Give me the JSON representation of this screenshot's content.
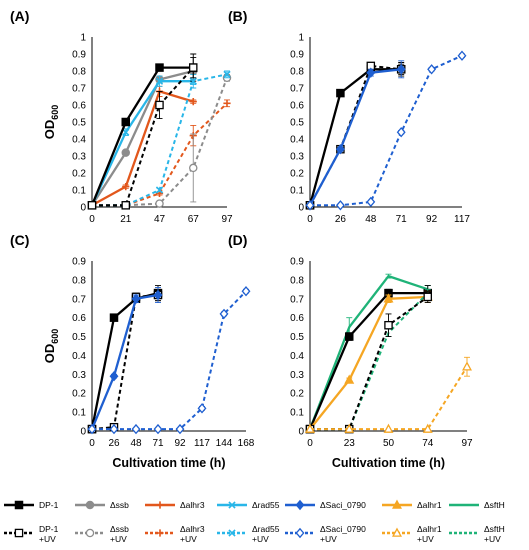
{
  "figure": {
    "shared_xlabel": "Cultivation time (h)",
    "shared_ylabel": "OD600",
    "shared_ylabel_main": "OD",
    "shared_ylabel_sub": "600"
  },
  "legend": {
    "rows": [
      [
        {
          "label": "DP-1",
          "label2": "",
          "color": "#000000",
          "dash": "",
          "marker": "square",
          "filled": true
        },
        {
          "label": "Δssb",
          "label2": "",
          "color": "#8c8c8c",
          "dash": "",
          "marker": "circle",
          "filled": true
        },
        {
          "label": "Δalhr3",
          "label2": "",
          "color": "#e2571c",
          "dash": "",
          "marker": "plus",
          "filled": true
        },
        {
          "label": "Δrad55",
          "label2": "",
          "color": "#29b6e8",
          "dash": "",
          "marker": "x",
          "filled": true
        },
        {
          "label": "ΔSaci_0790",
          "label2": "",
          "color": "#1f5fd0",
          "dash": "",
          "marker": "diamond",
          "filled": true
        },
        {
          "label": "Δalhr1",
          "label2": "",
          "color": "#f5a623",
          "dash": "",
          "marker": "triangle",
          "filled": true
        },
        {
          "label": "ΔsftH",
          "label2": "",
          "color": "#1fb378",
          "dash": "",
          "marker": "none",
          "filled": true
        }
      ],
      [
        {
          "label": "DP-1",
          "label2": "+UV",
          "color": "#000000",
          "dash": "3,2",
          "marker": "square",
          "filled": false
        },
        {
          "label": "Δssb",
          "label2": "+UV",
          "color": "#8c8c8c",
          "dash": "3,2",
          "marker": "circle",
          "filled": false
        },
        {
          "label": "Δalhr3",
          "label2": "+UV",
          "color": "#e2571c",
          "dash": "3,2",
          "marker": "plus",
          "filled": false
        },
        {
          "label": "Δrad55",
          "label2": "+UV",
          "color": "#29b6e8",
          "dash": "3,2",
          "marker": "x",
          "filled": false
        },
        {
          "label": "ΔSaci_0790",
          "label2": "+UV",
          "color": "#1f5fd0",
          "dash": "3,2",
          "marker": "diamond",
          "filled": false
        },
        {
          "label": "Δalhr1",
          "label2": "+UV",
          "color": "#f5a623",
          "dash": "3,2",
          "marker": "triangle",
          "filled": false
        },
        {
          "label": "ΔsftH",
          "label2": "+UV",
          "color": "#1fb378",
          "dash": "3,2",
          "marker": "none",
          "filled": false
        }
      ]
    ]
  },
  "chart_data": [
    {
      "panel": "(A)",
      "type": "line",
      "x": [
        "0",
        "21",
        "47",
        "67",
        "97"
      ],
      "ylim": [
        0,
        1
      ],
      "yticks": [
        "0",
        "0.1",
        "0.2",
        "0.3",
        "0.4",
        "0.5",
        "0.6",
        "0.7",
        "0.8",
        "0.9",
        "1"
      ],
      "show_ylabel": true,
      "show_xlabel": false,
      "series": [
        {
          "name": "Δalhr3",
          "color": "#e2571c",
          "dash": "",
          "marker": "plus",
          "filled": true,
          "values": [
            0.01,
            0.12,
            0.68,
            0.62,
            null
          ],
          "err": [
            0,
            0.01,
            0.03,
            0.01,
            0
          ]
        },
        {
          "name": "Δssb",
          "color": "#8c8c8c",
          "dash": "",
          "marker": "circle",
          "filled": true,
          "values": [
            0.01,
            0.32,
            0.75,
            0.8,
            null
          ],
          "err": [
            0,
            0.01,
            0.02,
            0.02,
            0
          ]
        },
        {
          "name": "Δrad55",
          "color": "#29b6e8",
          "dash": "",
          "marker": "x",
          "filled": true,
          "values": [
            0.01,
            0.44,
            0.74,
            0.74,
            null
          ],
          "err": [
            0,
            0.02,
            0.03,
            0.04,
            0
          ]
        },
        {
          "name": "DP-1",
          "color": "#000000",
          "dash": "",
          "marker": "square",
          "filled": true,
          "values": [
            0.01,
            0.5,
            0.82,
            0.82,
            null
          ],
          "err": [
            0,
            0.02,
            0.02,
            0.08,
            0
          ]
        },
        {
          "name": "Δalhr3 +UV",
          "color": "#e2571c",
          "dash": "4,3",
          "marker": "plus",
          "filled": false,
          "values": [
            0.01,
            0.01,
            0.08,
            0.42,
            0.61
          ],
          "err": [
            0,
            0,
            0.01,
            0.06,
            0.02
          ]
        },
        {
          "name": "Δssb +UV",
          "color": "#8c8c8c",
          "dash": "4,3",
          "marker": "circle",
          "filled": false,
          "values": [
            0.01,
            0.01,
            0.02,
            0.23,
            0.76
          ],
          "err": [
            0,
            0,
            0,
            0.2,
            0.02
          ]
        },
        {
          "name": "Δrad55 +UV",
          "color": "#29b6e8",
          "dash": "4,3",
          "marker": "x",
          "filled": false,
          "values": [
            0.01,
            0.01,
            0.1,
            0.74,
            0.78
          ],
          "err": [
            0,
            0,
            0.01,
            0.02,
            0.02
          ]
        },
        {
          "name": "DP-1 +UV",
          "color": "#000000",
          "dash": "4,3",
          "marker": "square",
          "filled": false,
          "values": [
            0.01,
            0.01,
            0.6,
            0.82,
            null
          ],
          "err": [
            0,
            0,
            0.08,
            0.06,
            0
          ]
        }
      ]
    },
    {
      "panel": "(B)",
      "type": "line",
      "x": [
        "0",
        "26",
        "48",
        "71",
        "92",
        "117"
      ],
      "ylim": [
        0,
        1
      ],
      "yticks": [
        "0",
        "0.1",
        "0.2",
        "0.3",
        "0.4",
        "0.5",
        "0.6",
        "0.7",
        "0.8",
        "0.9",
        "1"
      ],
      "show_ylabel": false,
      "show_xlabel": false,
      "series": [
        {
          "name": "DP-1",
          "color": "#000000",
          "dash": "",
          "marker": "square",
          "filled": true,
          "values": [
            0.01,
            0.67,
            0.81,
            0.81,
            null,
            null
          ],
          "err": [
            0,
            0.01,
            0.02,
            0.04,
            0,
            0
          ]
        },
        {
          "name": "DP-1 +UV",
          "color": "#000000",
          "dash": "4,3",
          "marker": "square",
          "filled": false,
          "values": [
            0.01,
            0.34,
            0.83,
            0.81,
            null,
            null
          ],
          "err": [
            0,
            0.01,
            0.01,
            0.03,
            0,
            0
          ]
        },
        {
          "name": "ΔSaci_0790",
          "color": "#1f5fd0",
          "dash": "",
          "marker": "diamond",
          "filled": true,
          "values": [
            0.01,
            0.34,
            0.79,
            0.81,
            null,
            null
          ],
          "err": [
            0,
            0.01,
            0.02,
            0.05,
            0,
            0
          ]
        },
        {
          "name": "ΔSaci_0790 +UV",
          "color": "#1f5fd0",
          "dash": "4,3",
          "marker": "diamond",
          "filled": false,
          "values": [
            0.01,
            0.01,
            0.03,
            0.44,
            0.81,
            0.89
          ],
          "err": [
            0,
            0,
            0,
            0.01,
            0.01,
            0.01
          ]
        }
      ]
    },
    {
      "panel": "(C)",
      "type": "line",
      "x": [
        "0",
        "26",
        "48",
        "71",
        "92",
        "117",
        "144",
        "168"
      ],
      "ylim": [
        0,
        0.9
      ],
      "yticks": [
        "0",
        "0.1",
        "0.2",
        "0.3",
        "0.4",
        "0.5",
        "0.6",
        "0.7",
        "0.8",
        "0.9"
      ],
      "show_ylabel": true,
      "show_xlabel": true,
      "series": [
        {
          "name": "DP-1",
          "color": "#000000",
          "dash": "",
          "marker": "square",
          "filled": true,
          "values": [
            0.01,
            0.6,
            0.7,
            0.73,
            null,
            null,
            null,
            null
          ],
          "err": [
            0,
            0.01,
            0.02,
            0.04,
            0,
            0,
            0,
            0
          ]
        },
        {
          "name": "DP-1 +UV",
          "color": "#000000",
          "dash": "4,3",
          "marker": "square",
          "filled": false,
          "values": [
            0.01,
            0.02,
            0.71,
            0.72,
            null,
            null,
            null,
            null
          ],
          "err": [
            0,
            0,
            0.02,
            0.03,
            0,
            0,
            0,
            0
          ]
        },
        {
          "name": "ΔSaci_0790",
          "color": "#1f5fd0",
          "dash": "",
          "marker": "diamond",
          "filled": true,
          "values": [
            0.01,
            0.29,
            0.7,
            0.72,
            null,
            null,
            null,
            null
          ],
          "err": [
            0,
            0.01,
            0.02,
            0.04,
            0,
            0,
            0,
            0
          ]
        },
        {
          "name": "ΔSaci_0790 +UV",
          "color": "#1f5fd0",
          "dash": "4,3",
          "marker": "diamond",
          "filled": false,
          "values": [
            0.01,
            0.01,
            0.01,
            0.01,
            0.01,
            0.12,
            0.62,
            0.74
          ],
          "err": [
            0,
            0,
            0,
            0,
            0,
            0.01,
            0.01,
            0.01
          ]
        }
      ]
    },
    {
      "panel": "(D)",
      "type": "line",
      "x": [
        "0",
        "23",
        "50",
        "74",
        "97"
      ],
      "ylim": [
        0,
        0.9
      ],
      "yticks": [
        "0",
        "0.1",
        "0.2",
        "0.3",
        "0.4",
        "0.5",
        "0.6",
        "0.7",
        "0.8",
        "0.9"
      ],
      "show_ylabel": false,
      "show_xlabel": true,
      "series": [
        {
          "name": "ΔsftH",
          "color": "#1fb378",
          "dash": "",
          "marker": "none",
          "filled": true,
          "values": [
            0.01,
            0.55,
            0.82,
            0.75,
            null
          ],
          "err": [
            0,
            0.05,
            0.01,
            0.02,
            0
          ]
        },
        {
          "name": "DP-1",
          "color": "#000000",
          "dash": "",
          "marker": "square",
          "filled": true,
          "values": [
            0.01,
            0.5,
            0.73,
            0.73,
            null
          ],
          "err": [
            0,
            0.02,
            0.02,
            0.04,
            0
          ]
        },
        {
          "name": "Δalhr1",
          "color": "#f5a623",
          "dash": "",
          "marker": "triangle",
          "filled": true,
          "values": [
            0.01,
            0.27,
            0.7,
            0.71,
            null
          ],
          "err": [
            0,
            0.01,
            0.02,
            0.03,
            0
          ]
        },
        {
          "name": "ΔsftH +UV",
          "color": "#1fb378",
          "dash": "4,3",
          "marker": "none",
          "filled": false,
          "values": [
            0.01,
            0.01,
            0.52,
            0.73,
            null
          ],
          "err": [
            0,
            0,
            0.02,
            0.02,
            0
          ]
        },
        {
          "name": "DP-1 +UV",
          "color": "#000000",
          "dash": "4,3",
          "marker": "square",
          "filled": false,
          "values": [
            0.01,
            0.01,
            0.56,
            0.71,
            null
          ],
          "err": [
            0,
            0,
            0.06,
            0.03,
            0
          ]
        },
        {
          "name": "Δalhr1 +UV",
          "color": "#f5a623",
          "dash": "4,3",
          "marker": "triangle",
          "filled": false,
          "values": [
            0.01,
            0.01,
            0.01,
            0.01,
            0.34
          ],
          "err": [
            0,
            0,
            0,
            0,
            0.05
          ]
        }
      ]
    }
  ]
}
